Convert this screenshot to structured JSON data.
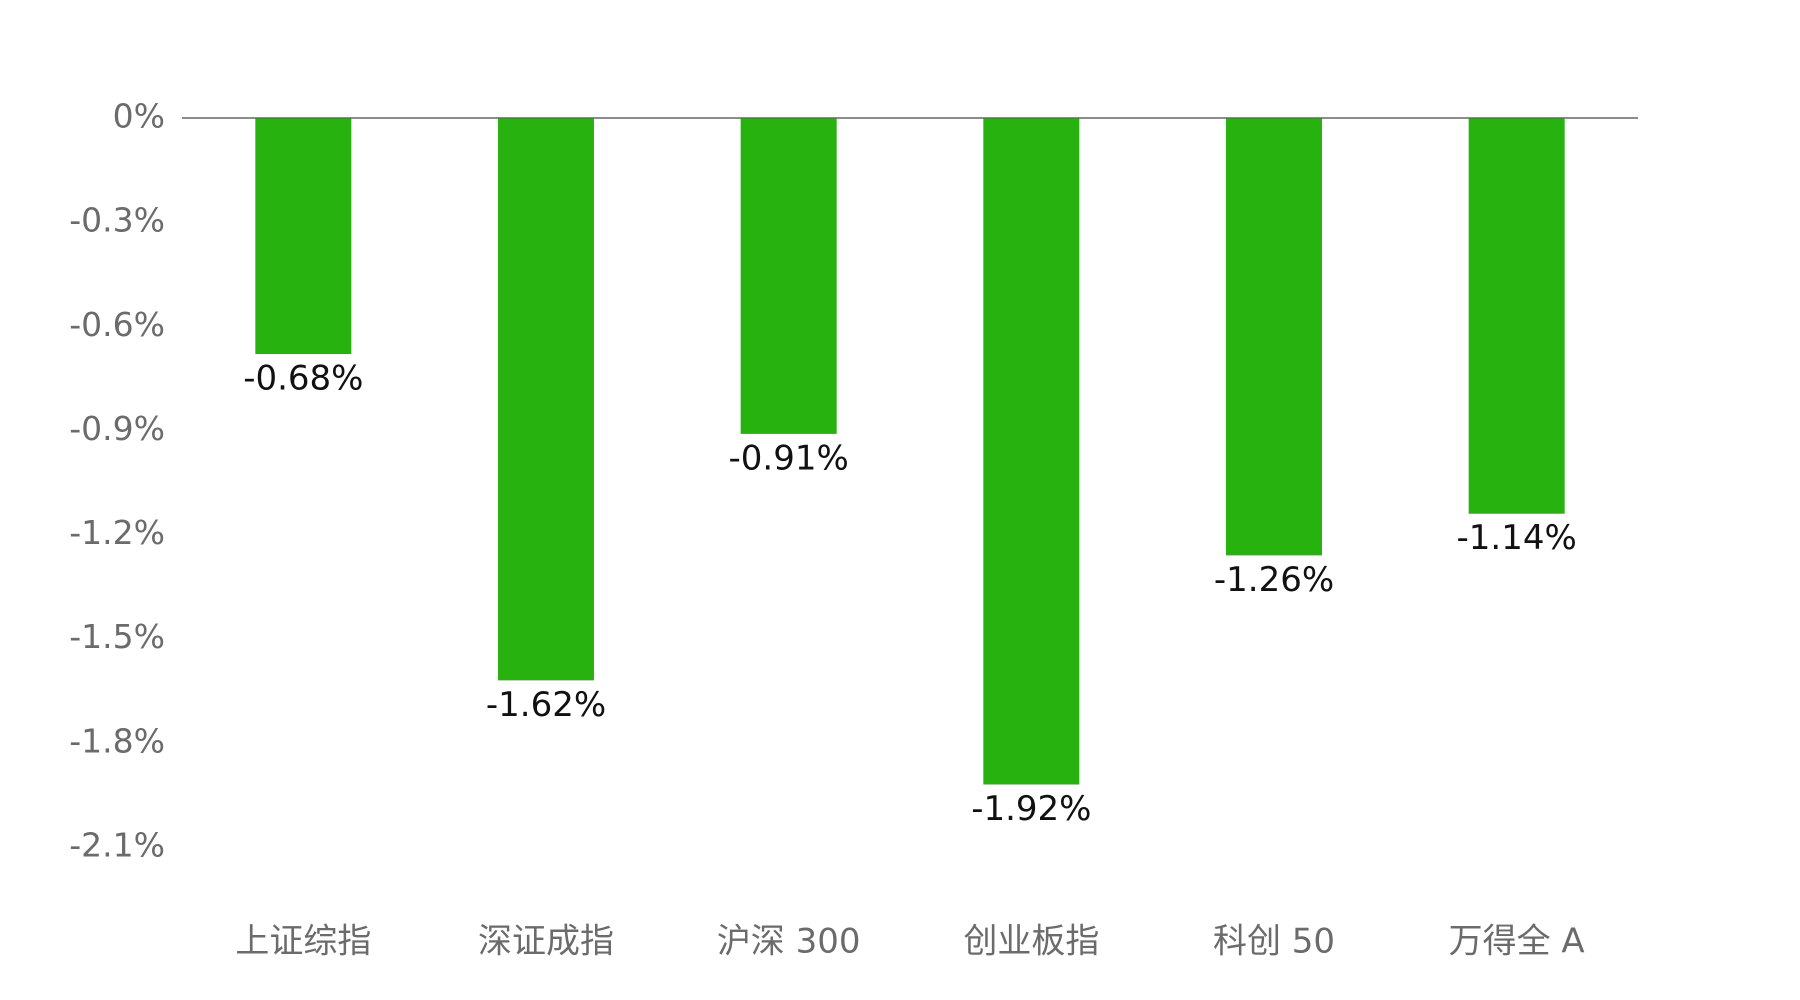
{
  "chart_data": {
    "type": "bar",
    "categories": [
      "上证综指",
      "深证成指",
      "沪深 300",
      "创业板指",
      "科创 50",
      "万得全 A"
    ],
    "values": [
      -0.68,
      -1.62,
      -0.91,
      -1.92,
      -1.26,
      -1.14
    ],
    "value_labels": [
      "-0.68%",
      "-1.62%",
      "-0.91%",
      "-1.92%",
      "-1.26%",
      "-1.14%"
    ],
    "color": "#28b20f",
    "ylim": [
      -2.1,
      0
    ],
    "yticks": [
      {
        "value": 0,
        "label": "0%"
      },
      {
        "value": -0.3,
        "label": "-0.3%"
      },
      {
        "value": -0.6,
        "label": "-0.6%"
      },
      {
        "value": -0.9,
        "label": "-0.9%"
      },
      {
        "value": -1.2,
        "label": "-1.2%"
      },
      {
        "value": -1.5,
        "label": "-1.5%"
      },
      {
        "value": -1.8,
        "label": "-1.8%"
      },
      {
        "value": -2.1,
        "label": "-2.1%"
      }
    ],
    "grid": false
  }
}
